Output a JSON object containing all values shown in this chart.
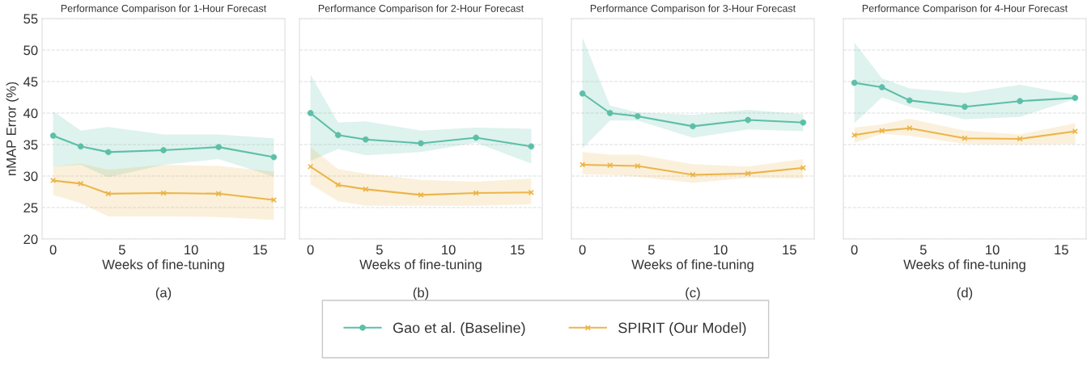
{
  "chart_data": [
    {
      "type": "line",
      "title": "Performance Comparison for 1-Hour Forecast",
      "xlabel": "Weeks of fine-tuning",
      "ylabel": "nMAP Error (%)",
      "annotations": [
        "(a)"
      ],
      "x": [
        0,
        2,
        4,
        8,
        12,
        16
      ],
      "xlim": [
        -0.8,
        16.8
      ],
      "xticks": [
        0,
        5,
        10,
        15
      ],
      "ylim": [
        20,
        55
      ],
      "yticks": [
        20,
        25,
        30,
        35,
        40,
        45,
        50,
        55
      ],
      "grid": "y",
      "legend": "bottom",
      "series": [
        {
          "name": "Gao et al. (Baseline)",
          "color": "#5cbfa8",
          "marker": "circle",
          "values": [
            36.4,
            34.7,
            33.8,
            34.1,
            34.6,
            33.0
          ],
          "lower": [
            31.5,
            31.8,
            29.8,
            31.8,
            32.7,
            29.9
          ],
          "upper": [
            40.3,
            37.2,
            37.8,
            36.6,
            36.6,
            36.0
          ]
        },
        {
          "name": "SPIRIT (Our Model)",
          "color": "#ebb54a",
          "marker": "cross",
          "values": [
            29.3,
            28.8,
            27.2,
            27.3,
            27.2,
            26.2
          ],
          "lower": [
            27.0,
            25.7,
            23.6,
            23.6,
            23.5,
            23.0
          ],
          "upper": [
            31.5,
            32.0,
            31.0,
            31.8,
            31.6,
            30.7
          ]
        }
      ]
    },
    {
      "type": "line",
      "title": "Performance Comparison for 2-Hour Forecast",
      "xlabel": "Weeks of fine-tuning",
      "annotations": [
        "(b)"
      ],
      "x": [
        0,
        2,
        4,
        8,
        12,
        16
      ],
      "xlim": [
        -0.8,
        16.8
      ],
      "xticks": [
        0,
        5,
        10,
        15
      ],
      "ylim": [
        20,
        55
      ],
      "yticks": [
        20,
        25,
        30,
        35,
        40,
        45,
        50,
        55
      ],
      "grid": "y",
      "tick_labels": "x",
      "series": [
        {
          "name": "Gao et al. (Baseline)",
          "color": "#5cbfa8",
          "marker": "circle",
          "values": [
            40.0,
            36.5,
            35.8,
            35.2,
            36.1,
            34.7
          ],
          "lower": [
            32.4,
            34.3,
            33.3,
            33.8,
            35.3,
            32.0
          ],
          "upper": [
            46.1,
            38.5,
            38.7,
            37.2,
            37.7,
            37.5
          ]
        },
        {
          "name": "SPIRIT (Our Model)",
          "color": "#ebb54a",
          "marker": "cross",
          "values": [
            31.5,
            28.6,
            27.9,
            27.0,
            27.3,
            27.4
          ],
          "lower": [
            28.7,
            26.0,
            25.3,
            25.3,
            25.3,
            25.5
          ],
          "upper": [
            34.6,
            31.1,
            30.4,
            29.4,
            29.1,
            29.6
          ]
        }
      ]
    },
    {
      "type": "line",
      "title": "Performance Comparison for 3-Hour Forecast",
      "xlabel": "Weeks of fine-tuning",
      "annotations": [
        "(c)"
      ],
      "x": [
        0,
        2,
        4,
        8,
        12,
        16
      ],
      "xlim": [
        -0.8,
        16.8
      ],
      "xticks": [
        0,
        5,
        10,
        15
      ],
      "ylim": [
        20,
        55
      ],
      "yticks": [
        20,
        25,
        30,
        35,
        40,
        45,
        50,
        55
      ],
      "grid": "y",
      "tick_labels": "x",
      "series": [
        {
          "name": "Gao et al. (Baseline)",
          "color": "#5cbfa8",
          "marker": "circle",
          "values": [
            43.1,
            40.0,
            39.5,
            37.9,
            38.9,
            38.5
          ],
          "lower": [
            34.4,
            38.8,
            38.8,
            36.1,
            37.4,
            37.1
          ],
          "upper": [
            52.0,
            41.2,
            40.1,
            39.7,
            40.5,
            39.8
          ]
        },
        {
          "name": "SPIRIT (Our Model)",
          "color": "#ebb54a",
          "marker": "cross",
          "values": [
            31.8,
            31.7,
            31.6,
            30.2,
            30.4,
            31.3
          ],
          "lower": [
            30.3,
            30.2,
            29.9,
            28.9,
            29.7,
            29.6
          ],
          "upper": [
            33.8,
            33.4,
            33.4,
            31.9,
            31.5,
            32.7
          ]
        }
      ]
    },
    {
      "type": "line",
      "title": "Performance Comparison for 4-Hour Forecast",
      "xlabel": "Weeks of fine-tuning",
      "annotations": [
        "(d)"
      ],
      "x": [
        0,
        2,
        4,
        8,
        12,
        16
      ],
      "xlim": [
        -0.8,
        16.8
      ],
      "xticks": [
        0,
        5,
        10,
        15
      ],
      "ylim": [
        20,
        55
      ],
      "yticks": [
        20,
        25,
        30,
        35,
        40,
        45,
        50,
        55
      ],
      "grid": "y",
      "tick_labels": "x",
      "series": [
        {
          "name": "Gao et al. (Baseline)",
          "color": "#5cbfa8",
          "marker": "circle",
          "values": [
            44.8,
            44.1,
            42.0,
            41.0,
            41.9,
            42.4
          ],
          "lower": [
            38.4,
            42.5,
            41.0,
            39.0,
            39.4,
            42.2
          ],
          "upper": [
            51.2,
            45.5,
            43.9,
            43.2,
            44.5,
            42.9
          ]
        },
        {
          "name": "SPIRIT (Our Model)",
          "color": "#ebb54a",
          "marker": "cross",
          "values": [
            36.5,
            37.2,
            37.6,
            36.0,
            35.9,
            37.1
          ],
          "lower": [
            35.3,
            36.7,
            36.4,
            35.1,
            35.0,
            35.1
          ],
          "upper": [
            37.7,
            38.2,
            39.1,
            37.2,
            36.6,
            38.4
          ]
        }
      ]
    }
  ]
}
